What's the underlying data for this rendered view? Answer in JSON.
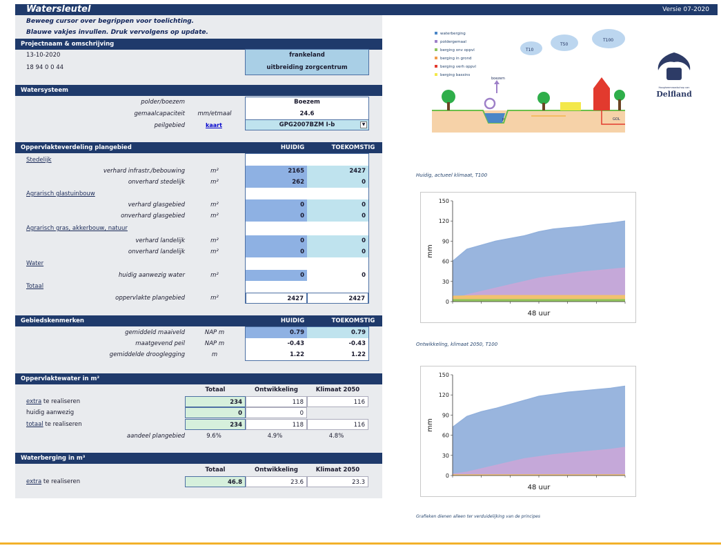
{
  "header": {
    "title": "Watersleutel",
    "version": "Versie 07-2020"
  },
  "instructions": [
    "Beweeg cursor over begrippen voor toelichting.",
    "Blauwe vakjes invullen. Druk vervolgens op update."
  ],
  "project": {
    "section_title": "Projectnaam & omschrijving",
    "date": "13-10-2020",
    "code": "18 94 0 0 44",
    "name": "frankeland",
    "description": "uitbreiding zorgcentrum"
  },
  "watersysteem": {
    "section_title": "Watersysteem",
    "polder_label": "polder/boezem",
    "polder_value": "Boezem",
    "gemaal_label": "gemaalcapaciteit",
    "gemaal_unit": "mm/etmaal",
    "gemaal_value": "24.6",
    "peil_label": "peilgebied",
    "peil_link": "kaart",
    "peil_value": "GPG2007BZM I-b"
  },
  "oppervlakte": {
    "section_title": "Oppervlakteverdeling plangebied",
    "col_huidig": "HUIDIG",
    "col_toekomstig": "TOEKOMSTIG",
    "cat_stedelijk": "Stedelijk",
    "cat_agrarisch_glas": "Agrarisch glastuinbouw",
    "cat_agrarisch_gras": "Agrarisch gras, akkerbouw, natuur",
    "cat_water": "Water",
    "cat_totaal": "Totaal",
    "rows": [
      {
        "label": "verhard infrastr./bebouwing",
        "unit": "m²",
        "huidig": "2165",
        "toekomstig": "2427"
      },
      {
        "label": "onverhard stedelijk",
        "unit": "m²",
        "huidig": "262",
        "toekomstig": "0"
      },
      {
        "label": "verhard glasgebied",
        "unit": "m²",
        "huidig": "0",
        "toekomstig": "0"
      },
      {
        "label": "onverhard glasgebied",
        "unit": "m²",
        "huidig": "0",
        "toekomstig": "0"
      },
      {
        "label": "verhard landelijk",
        "unit": "m²",
        "huidig": "0",
        "toekomstig": "0"
      },
      {
        "label": "onverhard landelijk",
        "unit": "m²",
        "huidig": "0",
        "toekomstig": "0"
      },
      {
        "label": "huidig aanwezig water",
        "unit": "m²",
        "huidig": "0",
        "toekomstig": "0"
      },
      {
        "label": "oppervlakte plangebied",
        "unit": "m²",
        "huidig": "2427",
        "toekomstig": "2427"
      }
    ]
  },
  "gebied": {
    "section_title": "Gebiedskenmerken",
    "col_huidig": "HUIDIG",
    "col_toekomstig": "TOEKOMSTIG",
    "rows": [
      {
        "label": "gemiddeld maaiveld",
        "unit": "NAP m",
        "huidig": "0.79",
        "toekomstig": "0.79"
      },
      {
        "label": "maatgevend peil",
        "unit": "NAP m",
        "huidig": "-0.43",
        "toekomstig": "-0.43"
      },
      {
        "label": "gemiddelde drooglegging",
        "unit": "m",
        "huidig": "1.22",
        "toekomstig": "1.22"
      }
    ]
  },
  "ow": {
    "section_title": "Oppervlaktewater in m²",
    "col_totaal": "Totaal",
    "col_ontw": "Ontwikkeling",
    "col_klimaat": "Klimaat 2050",
    "extra_a": "extra",
    "extra_b": " te realiseren",
    "extra": {
      "totaal": "234",
      "ontw": "118",
      "klimaat": "116"
    },
    "huidig_label": "huidig aanwezig",
    "huidig": {
      "totaal": "0",
      "ontw": "0"
    },
    "totaal_a": "totaal",
    "totaal_b": " te realiseren",
    "totaal": {
      "totaal": "234",
      "ontw": "118",
      "klimaat": "116"
    },
    "aandeel_label": "aandeel plangebied",
    "aandeel": {
      "totaal": "9.6%",
      "ontw": "4.9%",
      "klimaat": "4.8%"
    }
  },
  "wb": {
    "section_title": "Waterberging in m³",
    "col_totaal": "Totaal",
    "col_ontw": "Ontwikkeling",
    "col_klimaat": "Klimaat 2050",
    "extra_a": "extra",
    "extra_b": " te realiseren",
    "extra": {
      "totaal": "46.8",
      "ontw": "23.6",
      "klimaat": "23.3"
    }
  },
  "legend": [
    "waterberging",
    "poldergemaal",
    "berging onv oppvl",
    "berging in grond",
    "berging verh oppvl",
    "berging bassins"
  ],
  "legend_colors": [
    "#4a86c7",
    "#9e80c8",
    "#8ec55c",
    "#f29b4a",
    "#e23a2e",
    "#f3e84a"
  ],
  "illustration": {
    "clouds": [
      "T10",
      "T50",
      "T100"
    ],
    "boezem": "boezem",
    "gemaal": "P",
    "peil": "GOL"
  },
  "logo": {
    "subtext": "Hoogheemraadschap van",
    "name": "Delfland"
  },
  "captions": {
    "chart1": "Huidig, actueel klimaat, T100",
    "chart2": "Ontwikkeling, klimaat 2050, T100",
    "footer": "Grafieken dienen alleen ter verduidelijking van de principes"
  },
  "chart_data": [
    {
      "type": "area",
      "x": [
        0,
        4,
        8,
        12,
        16,
        20,
        24,
        28,
        32,
        36,
        40,
        44,
        48
      ],
      "xlabel": "48 uur",
      "ylabel": "mm",
      "ylim": [
        0,
        150
      ],
      "yticks": [
        0,
        30,
        60,
        90,
        120,
        150
      ],
      "series": [
        {
          "color": "#93b1dc",
          "values": [
            60,
            78,
            84,
            90,
            94,
            98,
            104,
            108,
            110,
            112,
            115,
            117,
            120
          ]
        },
        {
          "color": "#c7a8d8",
          "values": [
            3,
            10,
            15,
            20,
            25,
            30,
            35,
            38,
            41,
            44,
            46,
            48,
            50
          ]
        },
        {
          "color": "#f3c26a",
          "values": [
            8,
            8.5,
            9,
            9,
            9,
            9,
            9,
            9,
            9,
            9,
            9,
            9,
            9
          ]
        },
        {
          "color": "#8ec55c",
          "values": [
            3,
            3,
            3,
            3,
            3,
            3,
            3,
            3,
            3,
            3,
            3,
            3,
            3
          ]
        }
      ]
    },
    {
      "type": "area",
      "x": [
        0,
        4,
        8,
        12,
        16,
        20,
        24,
        28,
        32,
        36,
        40,
        44,
        48
      ],
      "xlabel": "48 uur",
      "ylabel": "mm",
      "ylim": [
        0,
        150
      ],
      "yticks": [
        0,
        30,
        60,
        90,
        120,
        150
      ],
      "series": [
        {
          "color": "#93b1dc",
          "values": [
            72,
            88,
            95,
            100,
            106,
            112,
            118,
            121,
            124,
            126,
            128,
            130,
            133
          ]
        },
        {
          "color": "#c7a8d8",
          "values": [
            2,
            5,
            10,
            15,
            20,
            25,
            28,
            31,
            33,
            35,
            37,
            39,
            42
          ]
        },
        {
          "color": "#f3c26a",
          "values": [
            1,
            1,
            1,
            1,
            1,
            1,
            1,
            1,
            1,
            1,
            1,
            1,
            1
          ]
        }
      ]
    }
  ]
}
